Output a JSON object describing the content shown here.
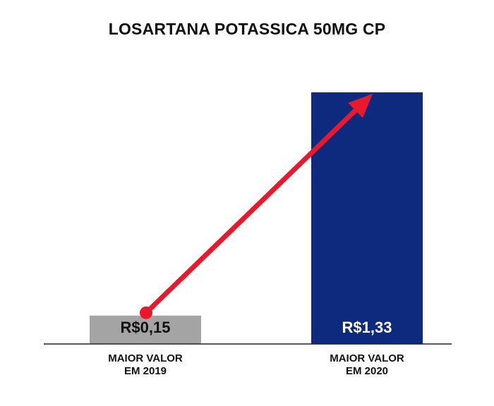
{
  "chart_data": {
    "type": "bar",
    "title": "LOSARTANA POTASSICA 50MG CP",
    "categories": [
      [
        "MAIOR VALOR",
        "EM 2019"
      ],
      [
        "MAIOR VALOR",
        "EM 2020"
      ]
    ],
    "values": [
      0.15,
      1.33
    ],
    "value_labels": [
      "R$0,15",
      "R$1,33"
    ],
    "ylim": [
      0,
      1.33
    ],
    "grid": false,
    "legend": "none",
    "colors": {
      "bars": [
        "#a3a4a3",
        "#0d2a7f"
      ],
      "value_label_text": [
        "#111111",
        "#ffffff"
      ],
      "arrow": "#e8192c",
      "baseline": "#222222"
    },
    "annotation": {
      "type": "arrow",
      "from_category": 0,
      "to_category": 1
    }
  }
}
